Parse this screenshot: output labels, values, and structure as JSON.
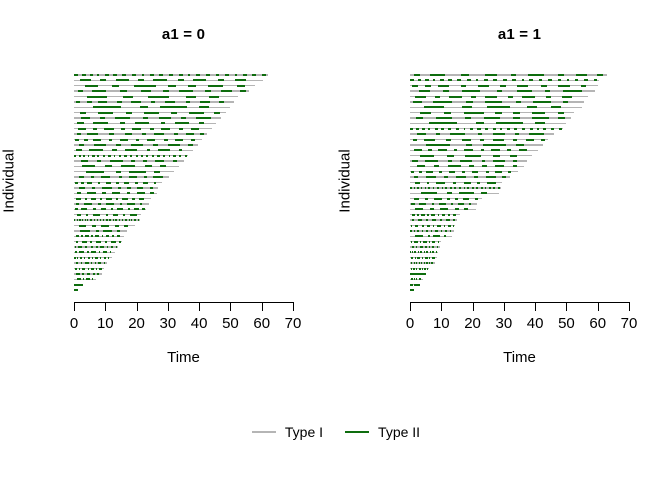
{
  "figure": {
    "background": "#ffffff",
    "text_color": "#000000"
  },
  "chart_data": {
    "type": "line",
    "subtype": "recurrent-event-timeline-plot",
    "description": "Two-panel event history plot: one horizontal timeline per individual, sorted by decreasing follow-up time; gray baseline = Type I state, dark-green segments = Type II episodes.",
    "series_colors": {
      "type1": "#b5b5b5",
      "type2": "#0e6d0e"
    },
    "axis_color": "#000000",
    "panels": [
      {
        "title": "a1 = 0",
        "xlabel": "Time",
        "ylabel": "Individual",
        "xlim": [
          0,
          70
        ],
        "xticks": [
          0,
          10,
          20,
          30,
          40,
          50,
          60,
          70
        ],
        "n_individuals": 41,
        "follow_up_times": [
          62,
          60.5,
          58,
          56,
          52.5,
          51,
          50,
          48.5,
          47,
          45.5,
          44,
          42.5,
          41,
          39.5,
          38,
          36.5,
          35,
          33.5,
          32,
          30.5,
          28,
          27,
          26.5,
          24.5,
          24,
          23,
          21.5,
          21,
          19.5,
          17,
          16,
          15.5,
          14,
          13,
          12,
          10.5,
          9.5,
          9,
          7,
          3,
          1
        ],
        "green_pattern_index": [
          0,
          1,
          2,
          3,
          4,
          5,
          6,
          7,
          8,
          9,
          1,
          3,
          5,
          7,
          9,
          0,
          2,
          4,
          6,
          8,
          5,
          2,
          7,
          1,
          9,
          3,
          8,
          0,
          4,
          6,
          1,
          7,
          3,
          9,
          5,
          2,
          8,
          4,
          6,
          1,
          2
        ]
      },
      {
        "title": "a1 = 1",
        "xlabel": "Time",
        "ylabel": "Individual",
        "xlim": [
          0,
          70
        ],
        "xticks": [
          0,
          10,
          20,
          30,
          40,
          50,
          60,
          70
        ],
        "n_individuals": 41,
        "follow_up_times": [
          63,
          60.5,
          60,
          59,
          57,
          55.5,
          55,
          52.5,
          51.5,
          50,
          49,
          46,
          44,
          42.5,
          41,
          39,
          37.5,
          36.5,
          34.5,
          32,
          29.5,
          29,
          28.5,
          23,
          21.5,
          21,
          16,
          15,
          14.5,
          14,
          13.5,
          10,
          9.5,
          9,
          8.5,
          8,
          6,
          5,
          4,
          3,
          1
        ],
        "green_pattern_index": [
          3,
          0,
          5,
          8,
          1,
          9,
          4,
          2,
          7,
          6,
          0,
          8,
          3,
          6,
          1,
          4,
          9,
          2,
          5,
          7,
          8,
          0,
          6,
          2,
          9,
          4,
          1,
          7,
          3,
          5,
          6,
          9,
          2,
          5,
          8,
          1,
          7,
          0,
          4,
          3,
          9
        ]
      }
    ],
    "green_patterns": [
      [
        [
          0.0,
          0.02
        ],
        [
          0.04,
          0.06
        ],
        [
          0.08,
          0.1
        ],
        [
          0.12,
          0.13
        ],
        [
          0.16,
          0.18
        ],
        [
          0.2,
          0.22
        ],
        [
          0.25,
          0.27
        ],
        [
          0.3,
          0.32
        ],
        [
          0.35,
          0.36
        ],
        [
          0.39,
          0.41
        ],
        [
          0.44,
          0.46
        ],
        [
          0.49,
          0.51
        ],
        [
          0.54,
          0.56
        ],
        [
          0.59,
          0.6
        ],
        [
          0.63,
          0.65
        ],
        [
          0.68,
          0.7
        ],
        [
          0.73,
          0.75
        ],
        [
          0.78,
          0.8
        ],
        [
          0.83,
          0.84
        ],
        [
          0.87,
          0.89
        ],
        [
          0.92,
          0.94
        ],
        [
          0.97,
          0.99
        ]
      ],
      [
        [
          0.03,
          0.09
        ],
        [
          0.14,
          0.17
        ],
        [
          0.22,
          0.29
        ],
        [
          0.34,
          0.37
        ],
        [
          0.42,
          0.49
        ],
        [
          0.55,
          0.58
        ],
        [
          0.63,
          0.7
        ],
        [
          0.76,
          0.79
        ],
        [
          0.85,
          0.91
        ]
      ],
      [
        [
          0.06,
          0.13
        ],
        [
          0.21,
          0.25
        ],
        [
          0.33,
          0.45
        ],
        [
          0.52,
          0.56
        ],
        [
          0.63,
          0.67
        ],
        [
          0.74,
          0.82
        ],
        [
          0.9,
          0.94
        ]
      ],
      [
        [
          0.02,
          0.05
        ],
        [
          0.1,
          0.18
        ],
        [
          0.26,
          0.3
        ],
        [
          0.38,
          0.44
        ],
        [
          0.51,
          0.54
        ],
        [
          0.6,
          0.68
        ],
        [
          0.75,
          0.78
        ],
        [
          0.84,
          0.9
        ],
        [
          0.95,
          0.98
        ]
      ],
      [
        [
          0.08,
          0.2
        ],
        [
          0.3,
          0.36
        ],
        [
          0.45,
          0.58
        ],
        [
          0.68,
          0.74
        ],
        [
          0.82,
          0.88
        ]
      ],
      [
        [
          0.01,
          0.04
        ],
        [
          0.08,
          0.11
        ],
        [
          0.15,
          0.21
        ],
        [
          0.27,
          0.3
        ],
        [
          0.36,
          0.42
        ],
        [
          0.48,
          0.51
        ],
        [
          0.57,
          0.63
        ],
        [
          0.7,
          0.73
        ],
        [
          0.79,
          0.85
        ],
        [
          0.91,
          0.94
        ]
      ],
      [
        [
          0.12,
          0.3
        ],
        [
          0.42,
          0.47
        ],
        [
          0.55,
          0.72
        ],
        [
          0.8,
          0.86
        ]
      ],
      [
        [
          0.04,
          0.08
        ],
        [
          0.16,
          0.26
        ],
        [
          0.34,
          0.38
        ],
        [
          0.46,
          0.56
        ],
        [
          0.64,
          0.68
        ],
        [
          0.76,
          0.86
        ],
        [
          0.92,
          0.96
        ]
      ],
      [
        [
          0.05,
          0.11
        ],
        [
          0.18,
          0.21
        ],
        [
          0.28,
          0.38
        ],
        [
          0.47,
          0.5
        ],
        [
          0.58,
          0.66
        ],
        [
          0.73,
          0.76
        ],
        [
          0.83,
          0.93
        ]
      ],
      [
        [
          0.02,
          0.07
        ],
        [
          0.13,
          0.24
        ],
        [
          0.32,
          0.36
        ],
        [
          0.43,
          0.53
        ],
        [
          0.61,
          0.64
        ],
        [
          0.71,
          0.81
        ],
        [
          0.88,
          0.91
        ]
      ]
    ],
    "legend": {
      "position": "bottom-center",
      "items": [
        {
          "label": "Type I",
          "color_key": "type1"
        },
        {
          "label": "Type II",
          "color_key": "type2"
        }
      ]
    }
  }
}
